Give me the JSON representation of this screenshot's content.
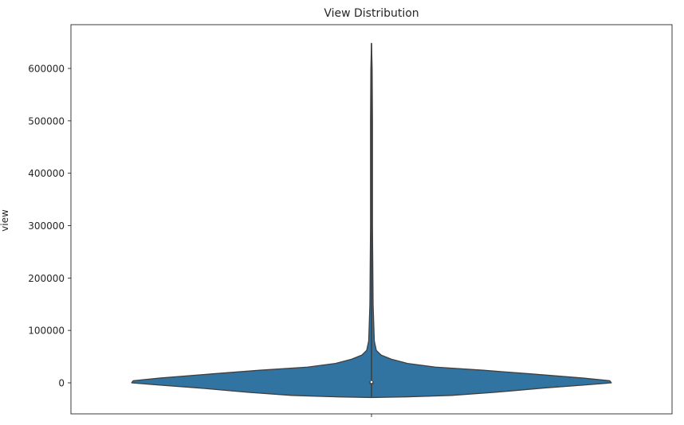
{
  "chart_data": {
    "type": "violin",
    "title": "View Distribution",
    "xlabel": "",
    "ylabel": "view",
    "ylim": [
      -60000,
      690000
    ],
    "yticks": [
      0,
      100000,
      200000,
      300000,
      400000,
      500000,
      600000
    ],
    "ytick_labels": [
      "0",
      "100000",
      "200000",
      "300000",
      "400000",
      "500000",
      "600000"
    ],
    "grid": false,
    "legend": "none",
    "color": "#3274a1",
    "edge_color": "#3f3f3f",
    "max_half_width": 300000,
    "density_profile": [
      {
        "y": -28000,
        "w": 0
      },
      {
        "y": -27000,
        "w": 40000
      },
      {
        "y": -24000,
        "w": 100000
      },
      {
        "y": -18000,
        "w": 155000
      },
      {
        "y": -10000,
        "w": 215000
      },
      {
        "y": -4000,
        "w": 268000
      },
      {
        "y": 0,
        "w": 300000
      },
      {
        "y": 4000,
        "w": 298000
      },
      {
        "y": 9000,
        "w": 265000
      },
      {
        "y": 17000,
        "w": 200000
      },
      {
        "y": 24000,
        "w": 140000
      },
      {
        "y": 30000,
        "w": 80000
      },
      {
        "y": 37000,
        "w": 45000
      },
      {
        "y": 45000,
        "w": 25000
      },
      {
        "y": 53000,
        "w": 12000
      },
      {
        "y": 62000,
        "w": 6000
      },
      {
        "y": 80000,
        "w": 3500
      },
      {
        "y": 150000,
        "w": 2000
      },
      {
        "y": 300000,
        "w": 1200
      },
      {
        "y": 500000,
        "w": 1200
      },
      {
        "y": 600000,
        "w": 800
      },
      {
        "y": 648000,
        "w": 0
      }
    ],
    "box": {
      "q1": -1000,
      "median": 1500,
      "q3": 3500,
      "whisker_low": -28000,
      "whisker_high": 648000
    }
  }
}
